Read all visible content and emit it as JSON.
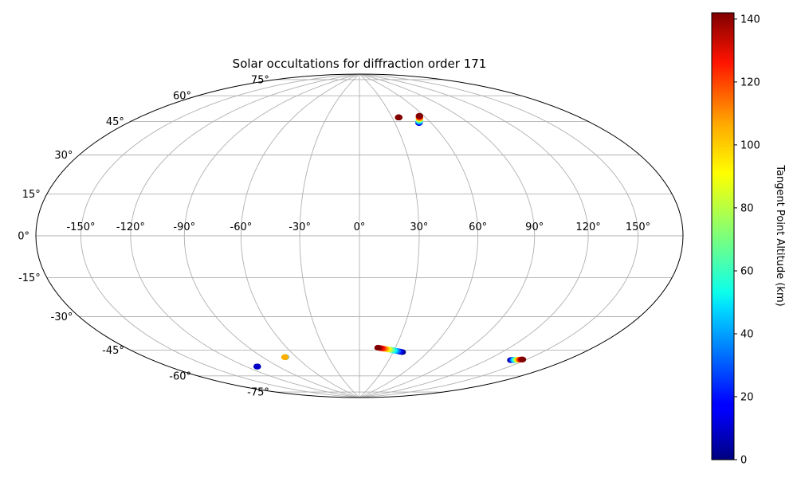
{
  "chart_data": {
    "type": "scatter",
    "projection": "hammer",
    "title": "Solar occultations for diffraction order 171",
    "grid": true,
    "lon_ticks": [
      -150,
      -120,
      -90,
      -60,
      -30,
      0,
      30,
      60,
      90,
      120,
      150
    ],
    "lon_tick_labels": [
      "-150°",
      "-120°",
      "-90°",
      "-60°",
      "-30°",
      "0°",
      "30°",
      "60°",
      "90°",
      "120°",
      "150°"
    ],
    "lat_ticks": [
      -75,
      -60,
      -45,
      -30,
      -15,
      0,
      15,
      30,
      45,
      60,
      75
    ],
    "lat_tick_labels": [
      "-75°",
      "-60°",
      "-45°",
      "-30°",
      "-15°",
      "0°",
      "15°",
      "30°",
      "45°",
      "60°",
      "75°"
    ],
    "colorbar": {
      "label": "Tangent Point Altitude (km)",
      "range": [
        0,
        142
      ],
      "ticks": [
        0,
        20,
        40,
        60,
        80,
        100,
        120,
        140
      ],
      "tick_labels": [
        "0",
        "20",
        "40",
        "60",
        "80",
        "100",
        "120",
        "140"
      ],
      "colormap": "jet"
    },
    "occultations": [
      {
        "lon_start": 50,
        "lat_start": 58,
        "lon_end": 56,
        "lat_end": 62,
        "alt_start": 10,
        "alt_end": 142
      },
      {
        "lon_start": 36,
        "lat_start": 61.8,
        "lon_end": 36,
        "lat_end": 61.8,
        "alt_start": 130,
        "alt_end": 142
      },
      {
        "lon_start": 38,
        "lat_start": -60.5,
        "lon_end": 15.5,
        "lat_end": -58.5,
        "alt_start": 0,
        "alt_end": 142
      },
      {
        "lon_start": -110,
        "lat_start": -64.5,
        "lon_end": -110,
        "lat_end": -64.5,
        "alt_start": 0,
        "alt_end": 10
      },
      {
        "lon_start": -70,
        "lat_start": -62,
        "lon_end": -70.5,
        "lat_end": -62,
        "alt_start": 0,
        "alt_end": 100
      },
      {
        "lon_start": 139,
        "lat_start": -57,
        "lon_end": 147,
        "lat_end": -55.5,
        "alt_start": 0,
        "alt_end": 142
      }
    ]
  }
}
